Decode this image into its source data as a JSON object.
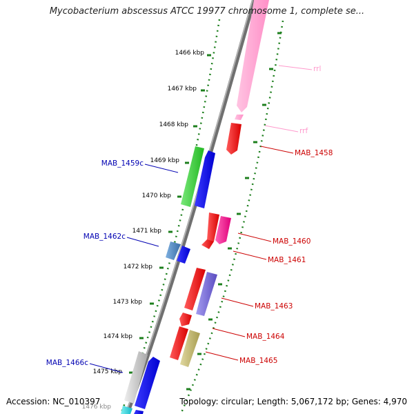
{
  "title": "Mycobacterium abscessus ATCC 19977 chromosome 1, complete se...",
  "footer": {
    "accession": "Accession: NC_010397",
    "summary": "Topology: circular; Length: 5,067,172 bp; Genes: 4,970"
  },
  "ticks": [
    "1466 kbp",
    "1467 kbp",
    "1468 kbp",
    "1469 kbp",
    "1470 kbp",
    "1471 kbp",
    "1472 kbp",
    "1473 kbp",
    "1474 kbp",
    "1475 kbp",
    "1476 kbp"
  ],
  "colors": {
    "axis": "#7f7f7f",
    "tick": "#1d7f1d",
    "forward_label": "#0000b2",
    "reverse_label": "#cc0000",
    "rna_label": "#ff99cc"
  },
  "genes": [
    {
      "label": "rrl",
      "strand": "reverse",
      "color": "#ff99cc"
    },
    {
      "label": "rrf",
      "strand": "reverse",
      "color": "#ff99cc"
    },
    {
      "label": "MAB_1458",
      "strand": "reverse",
      "color": "#e60000"
    },
    {
      "label": "MAB_1459c",
      "strand": "forward",
      "color": "#0000ee"
    },
    {
      "label": "MAB_1460",
      "strand": "reverse",
      "color": "#e60000"
    },
    {
      "label": "MAB_1461",
      "strand": "reverse",
      "color": "#e60000"
    },
    {
      "label": "MAB_1462c",
      "strand": "forward",
      "color": "#0000ee"
    },
    {
      "label": "MAB_1463",
      "strand": "reverse",
      "color": "#e60000"
    },
    {
      "label": "MAB_1464",
      "strand": "reverse",
      "color": "#e60000"
    },
    {
      "label": "MAB_1465",
      "strand": "reverse",
      "color": "#e60000"
    },
    {
      "label": "MAB_1466c",
      "strand": "forward",
      "color": "#0000ee"
    }
  ]
}
